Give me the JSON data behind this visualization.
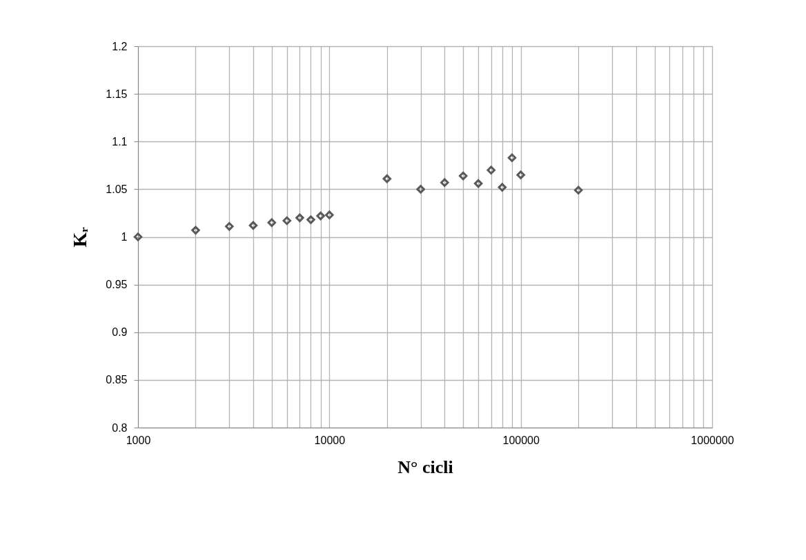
{
  "chart_data": {
    "type": "scatter",
    "xlabel": "N° cicli",
    "ylabel": "Kᵣ",
    "x": [
      1000,
      2000,
      3000,
      4000,
      5000,
      6000,
      7000,
      8000,
      9000,
      10000,
      20000,
      30000,
      40000,
      50000,
      60000,
      70000,
      80000,
      90000,
      100000,
      200000
    ],
    "series": [
      {
        "color": "#595959",
        "values": [
          1.0,
          1.007,
          1.011,
          1.012,
          1.015,
          1.017,
          1.02,
          1.018,
          1.022,
          1.023,
          1.061,
          1.05,
          1.057,
          1.064,
          1.056,
          1.07,
          1.052,
          1.083,
          1.065,
          1.049
        ]
      }
    ],
    "log": "x",
    "xlim": [
      1000,
      1000000
    ],
    "xticks": [
      1000,
      {
        "value": 2000,
        "label": null
      },
      {
        "value": 3000,
        "label": null
      },
      {
        "value": 4000,
        "label": null
      },
      {
        "value": 5000,
        "label": null
      },
      {
        "value": 6000,
        "label": null
      },
      {
        "value": 7000,
        "label": null
      },
      {
        "value": 8000,
        "label": null
      },
      {
        "value": 9000,
        "label": null
      },
      10000,
      {
        "value": 20000,
        "label": null
      },
      {
        "value": 30000,
        "label": null
      },
      {
        "value": 40000,
        "label": null
      },
      {
        "value": 50000,
        "label": null
      },
      {
        "value": 60000,
        "label": null
      },
      {
        "value": 70000,
        "label": null
      },
      {
        "value": 80000,
        "label": null
      },
      {
        "value": 90000,
        "label": null
      },
      100000,
      {
        "value": 200000,
        "label": null
      },
      {
        "value": 300000,
        "label": null
      },
      {
        "value": 400000,
        "label": null
      },
      {
        "value": 500000,
        "label": null
      },
      {
        "value": 600000,
        "label": null
      },
      {
        "value": 700000,
        "label": null
      },
      {
        "value": 800000,
        "label": null
      },
      {
        "value": 900000,
        "label": null
      },
      1000000
    ],
    "ylim": [
      0.8,
      1.2
    ],
    "yticks": [
      0.8,
      0.85,
      0.9,
      0.95,
      1,
      1.05,
      1.1,
      1.15,
      1.2
    ],
    "grid": true,
    "marker": "diamond"
  }
}
